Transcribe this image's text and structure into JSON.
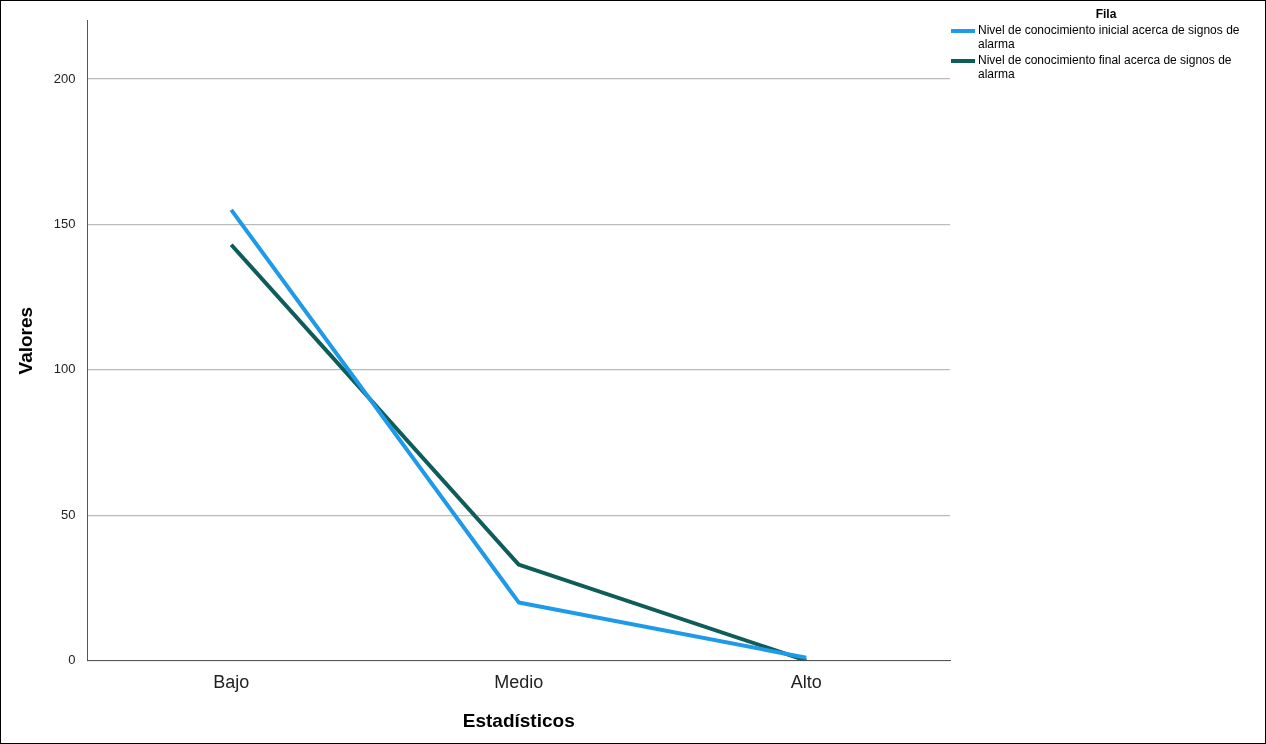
{
  "chart_data": {
    "type": "line",
    "xlabel": "Estadísticos",
    "ylabel": "Valores",
    "legend_title": "Fila",
    "categories": [
      "Bajo",
      "Medio",
      "Alto"
    ],
    "series": [
      {
        "name": "Nivel de conocimiento inicial acerca de signos de alarma",
        "color": "#1f9ae8",
        "values": [
          155,
          20,
          1
        ]
      },
      {
        "name": "Nivel de conocimiento final acerca de signos de alarma",
        "color": "#0e5d5a",
        "values": [
          143,
          33,
          0
        ]
      }
    ],
    "ylim": [
      0,
      220
    ],
    "yticks": [
      0,
      50,
      100,
      150,
      200
    ],
    "grid": "y",
    "legend": "top right",
    "marker": "none",
    "line_style": "solid"
  }
}
